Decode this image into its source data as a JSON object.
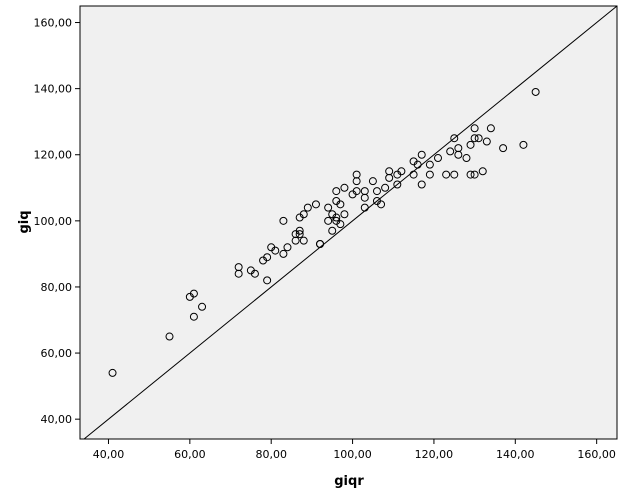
{
  "chart_data": {
    "type": "scatter",
    "xlabel": "giqr",
    "ylabel": "giq",
    "xlim": [
      33,
      165
    ],
    "ylim": [
      34,
      165
    ],
    "x_ticks": [
      40,
      60,
      80,
      100,
      120,
      140,
      160
    ],
    "y_ticks": [
      40,
      60,
      80,
      100,
      120,
      140,
      160
    ],
    "x_tick_labels": [
      "40,00",
      "60,00",
      "80,00",
      "100,00",
      "120,00",
      "140,00",
      "160,00"
    ],
    "y_tick_labels": [
      "40,00",
      "60,00",
      "80,00",
      "100,00",
      "120,00",
      "140,00",
      "160,00"
    ],
    "grid": false,
    "reference_line": "y = x",
    "colors": {
      "plot_background": "#f0f0f0",
      "marker_edge": "#000000",
      "line": "#000000"
    },
    "points": [
      {
        "x": 41,
        "y": 54
      },
      {
        "x": 55,
        "y": 65
      },
      {
        "x": 60,
        "y": 77
      },
      {
        "x": 61,
        "y": 78
      },
      {
        "x": 61,
        "y": 71
      },
      {
        "x": 63,
        "y": 74
      },
      {
        "x": 72,
        "y": 86
      },
      {
        "x": 72,
        "y": 84
      },
      {
        "x": 75,
        "y": 85
      },
      {
        "x": 76,
        "y": 84
      },
      {
        "x": 78,
        "y": 88
      },
      {
        "x": 79,
        "y": 89
      },
      {
        "x": 79,
        "y": 82
      },
      {
        "x": 80,
        "y": 92
      },
      {
        "x": 81,
        "y": 91
      },
      {
        "x": 83,
        "y": 90
      },
      {
        "x": 83,
        "y": 100
      },
      {
        "x": 84,
        "y": 92
      },
      {
        "x": 86,
        "y": 96
      },
      {
        "x": 86,
        "y": 94
      },
      {
        "x": 87,
        "y": 97
      },
      {
        "x": 87,
        "y": 96
      },
      {
        "x": 87,
        "y": 101
      },
      {
        "x": 88,
        "y": 102
      },
      {
        "x": 88,
        "y": 94
      },
      {
        "x": 89,
        "y": 104
      },
      {
        "x": 91,
        "y": 105
      },
      {
        "x": 92,
        "y": 93
      },
      {
        "x": 92,
        "y": 93
      },
      {
        "x": 94,
        "y": 104
      },
      {
        "x": 94,
        "y": 100
      },
      {
        "x": 95,
        "y": 102
      },
      {
        "x": 95,
        "y": 97
      },
      {
        "x": 96,
        "y": 101
      },
      {
        "x": 96,
        "y": 100
      },
      {
        "x": 96,
        "y": 106
      },
      {
        "x": 96,
        "y": 109
      },
      {
        "x": 97,
        "y": 99
      },
      {
        "x": 97,
        "y": 105
      },
      {
        "x": 98,
        "y": 110
      },
      {
        "x": 98,
        "y": 102
      },
      {
        "x": 100,
        "y": 108
      },
      {
        "x": 101,
        "y": 114
      },
      {
        "x": 101,
        "y": 112
      },
      {
        "x": 101,
        "y": 109
      },
      {
        "x": 103,
        "y": 107
      },
      {
        "x": 103,
        "y": 104
      },
      {
        "x": 103,
        "y": 109
      },
      {
        "x": 105,
        "y": 112
      },
      {
        "x": 106,
        "y": 106
      },
      {
        "x": 106,
        "y": 109
      },
      {
        "x": 107,
        "y": 105
      },
      {
        "x": 108,
        "y": 110
      },
      {
        "x": 109,
        "y": 115
      },
      {
        "x": 109,
        "y": 113
      },
      {
        "x": 111,
        "y": 111
      },
      {
        "x": 111,
        "y": 114
      },
      {
        "x": 112,
        "y": 115
      },
      {
        "x": 115,
        "y": 118
      },
      {
        "x": 115,
        "y": 114
      },
      {
        "x": 116,
        "y": 117
      },
      {
        "x": 117,
        "y": 120
      },
      {
        "x": 117,
        "y": 111
      },
      {
        "x": 119,
        "y": 117
      },
      {
        "x": 119,
        "y": 114
      },
      {
        "x": 121,
        "y": 119
      },
      {
        "x": 123,
        "y": 114
      },
      {
        "x": 124,
        "y": 121
      },
      {
        "x": 125,
        "y": 125
      },
      {
        "x": 125,
        "y": 114
      },
      {
        "x": 126,
        "y": 122
      },
      {
        "x": 126,
        "y": 120
      },
      {
        "x": 128,
        "y": 119
      },
      {
        "x": 129,
        "y": 114
      },
      {
        "x": 129,
        "y": 123
      },
      {
        "x": 130,
        "y": 125
      },
      {
        "x": 130,
        "y": 128
      },
      {
        "x": 130,
        "y": 114
      },
      {
        "x": 131,
        "y": 125
      },
      {
        "x": 132,
        "y": 115
      },
      {
        "x": 133,
        "y": 124
      },
      {
        "x": 134,
        "y": 128
      },
      {
        "x": 137,
        "y": 122
      },
      {
        "x": 142,
        "y": 123
      },
      {
        "x": 145,
        "y": 139
      }
    ]
  }
}
